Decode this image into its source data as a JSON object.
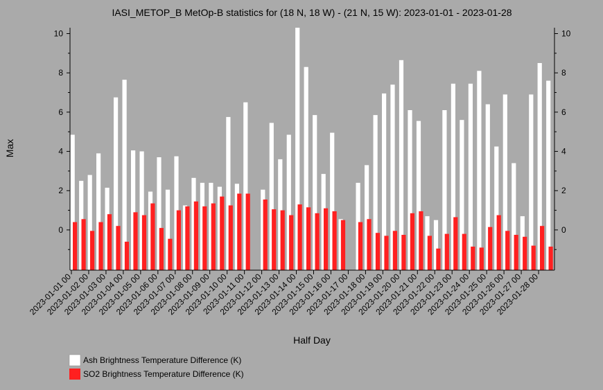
{
  "chart_data": {
    "type": "bar",
    "title": "IASI_METOP_B MetOp-B statistics for (18 N, 18 W) - (21 N, 15 W): 2023-01-01 - 2023-01-28",
    "xlabel": "Half Day",
    "ylabel": "Max",
    "ylim": [
      -2.05,
      10.3
    ],
    "yticks": [
      0,
      2,
      4,
      6,
      8,
      10
    ],
    "grid": false,
    "legend_placement": "bottom-left",
    "x_tick_labels": [
      "2023-01-01 00",
      "2023-01-02 00",
      "2023-01-03 00",
      "2023-01-04 00",
      "2023-01-05 00",
      "2023-01-06 00",
      "2023-01-07 00",
      "2023-01-08 00",
      "2023-01-09 00",
      "2023-01-10 00",
      "2023-01-11 00",
      "2023-01-12 00",
      "2023-01-13 00",
      "2023-01-14 00",
      "2023-01-15 00",
      "2023-01-16 00",
      "2023-01-17 00",
      "2023-01-18 00",
      "2023-01-19 00",
      "2023-01-20 00",
      "2023-01-21 00",
      "2023-01-22 00",
      "2023-01-23 00",
      "2023-01-24 00",
      "2023-01-25 00",
      "2023-01-26 00",
      "2023-01-27 00",
      "2023-01-28 00"
    ],
    "series": [
      {
        "name": "Ash Brightness Temperature Difference (K)",
        "color": "#ffffff",
        "values": [
          4.85,
          2.5,
          2.8,
          3.9,
          2.15,
          6.75,
          7.65,
          4.05,
          4.0,
          1.95,
          3.7,
          2.05,
          3.75,
          1.25,
          2.65,
          2.4,
          2.4,
          2.2,
          5.75,
          2.35,
          6.5,
          null,
          2.05,
          5.45,
          3.6,
          4.85,
          10.3,
          8.3,
          5.85,
          2.85,
          4.95,
          0.55,
          null,
          2.4,
          3.3,
          5.85,
          6.95,
          7.4,
          8.65,
          6.1,
          5.55,
          0.7,
          0.5,
          6.1,
          7.45,
          5.6,
          7.45,
          8.1,
          6.4,
          4.25,
          6.9,
          3.4,
          0.7,
          6.9,
          8.5,
          7.6
        ]
      },
      {
        "name": "SO2 Brightness Temperature Difference (K)",
        "color": "#ff2020",
        "values": [
          0.4,
          0.55,
          -0.05,
          0.4,
          0.8,
          0.2,
          -0.6,
          0.9,
          0.75,
          1.35,
          0.1,
          -0.45,
          1.0,
          1.2,
          1.45,
          1.2,
          1.35,
          1.7,
          1.25,
          1.85,
          1.85,
          null,
          1.55,
          1.05,
          1.0,
          0.75,
          1.3,
          1.15,
          0.85,
          1.1,
          0.95,
          0.5,
          null,
          0.4,
          0.55,
          -0.15,
          -0.3,
          -0.05,
          -0.25,
          0.85,
          0.95,
          -0.3,
          -0.95,
          -0.2,
          0.65,
          -0.2,
          -0.85,
          -0.9,
          0.15,
          0.75,
          -0.05,
          -0.25,
          -0.35,
          -0.8,
          0.2,
          -0.85
        ]
      }
    ]
  }
}
